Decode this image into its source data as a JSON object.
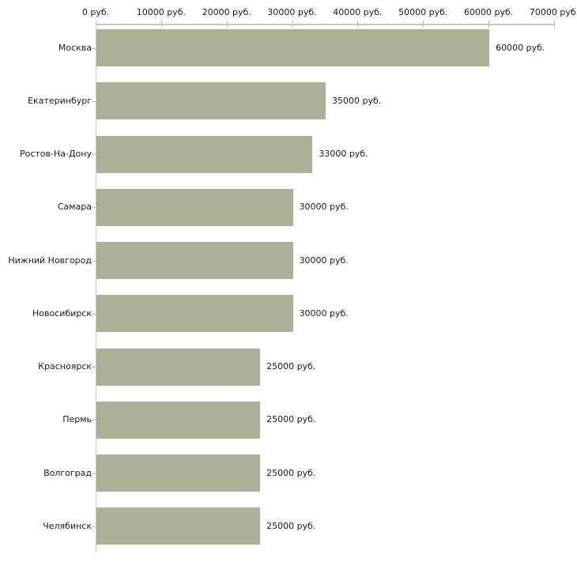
{
  "chart_data": {
    "type": "bar",
    "orientation": "horizontal",
    "title": "",
    "xlabel": "",
    "ylabel": "",
    "categories": [
      "Москва",
      "Екатеринбург",
      "Ростов-На-Дону",
      "Самара",
      "Нижний Новгород",
      "Новосибирск",
      "Красноярск",
      "Пермь",
      "Волгоград",
      "Челябинск"
    ],
    "values": [
      60000,
      35000,
      33000,
      30000,
      30000,
      30000,
      25000,
      25000,
      25000,
      25000
    ],
    "value_labels": [
      "60000 руб.",
      "35000 руб.",
      "33000 руб.",
      "30000 руб.",
      "30000 руб.",
      "30000 руб.",
      "25000 руб.",
      "25000 руб.",
      "25000 руб.",
      "25000 руб."
    ],
    "x_tick_labels": [
      "0 руб.",
      "10000 руб.",
      "20000 руб.",
      "30000 руб.",
      "40000 руб.",
      "50000 руб.",
      "60000 руб.",
      "70000 руб."
    ],
    "x_tick_values": [
      0,
      10000,
      20000,
      30000,
      40000,
      50000,
      60000,
      70000
    ],
    "xlim": [
      0,
      70000
    ],
    "legend": null,
    "grid": false,
    "colors": {
      "bar": "#abb196",
      "axis_line": "#c6c6c8",
      "tick": "#bfbf94",
      "text": "#1a1a1a",
      "background": "#ffffff"
    }
  }
}
